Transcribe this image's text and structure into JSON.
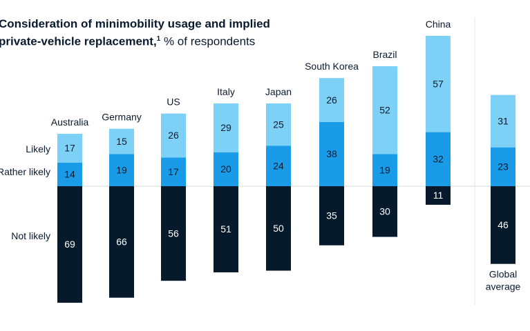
{
  "title_bold_line1": "Consideration of minimobility usage and implied",
  "title_bold_line2": "private-vehicle replacement,",
  "title_superscript": "1",
  "title_rest": " % of respondents",
  "row_labels": [
    "Likely",
    "Rather likely",
    "Not likely"
  ],
  "colors": {
    "likely": "#7dd1f7",
    "rather_likely": "#1a9be8",
    "not_likely": "#061a2b",
    "baseline": "#d9d9d9"
  },
  "chart_data": {
    "type": "bar",
    "stacked": "diverging",
    "categories": [
      "Australia",
      "Germany",
      "US",
      "Italy",
      "Japan",
      "South Korea",
      "Brazil",
      "China",
      "Global average"
    ],
    "series": [
      {
        "name": "Likely",
        "values": [
          17,
          15,
          26,
          29,
          25,
          26,
          52,
          57,
          31
        ]
      },
      {
        "name": "Rather likely",
        "values": [
          14,
          19,
          17,
          20,
          24,
          38,
          19,
          32,
          23
        ]
      },
      {
        "name": "Not likely",
        "values": [
          69,
          66,
          56,
          51,
          50,
          35,
          30,
          11,
          46
        ]
      }
    ],
    "unit": "% of respondents"
  }
}
